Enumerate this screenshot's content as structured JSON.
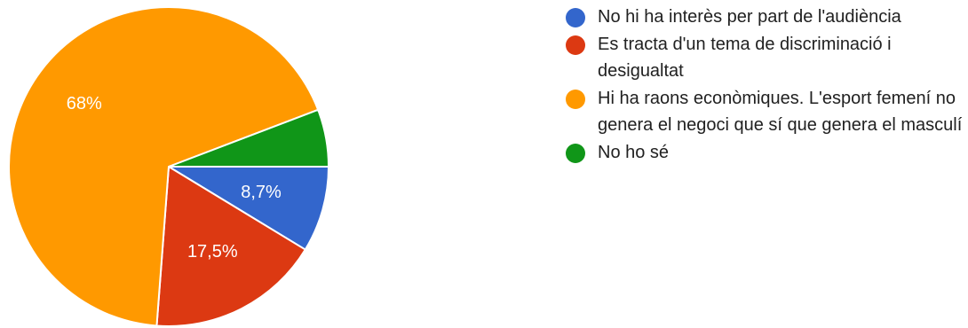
{
  "chart_data": {
    "type": "pie",
    "slices": [
      {
        "label": "No hi ha interès per part de l'audiència",
        "value": 8.7,
        "value_label": "8,7%",
        "color": "#3366cc"
      },
      {
        "label": "Es tracta d'un tema de discriminació i desigualtat",
        "value": 17.5,
        "value_label": "17,5%",
        "color": "#dc3912"
      },
      {
        "label": "Hi ha raons econòmiques. L'esport femení no genera el negoci que sí que genera el masculí",
        "value": 68,
        "value_label": "68%",
        "color": "#ff9900"
      },
      {
        "label": "No ho sé",
        "value": 5.8,
        "value_label": "",
        "color": "#109618"
      }
    ],
    "legend_position": "right",
    "start": "3 o'clock",
    "direction": "clockwise"
  }
}
